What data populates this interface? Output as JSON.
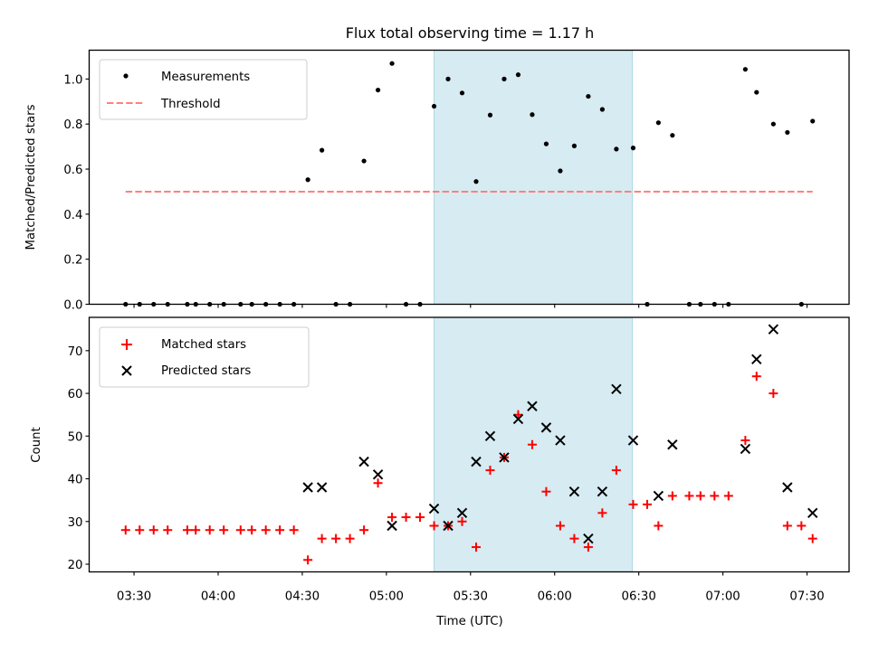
{
  "chart_data": [
    {
      "panel": "top",
      "type": "scatter",
      "title": "Flux total observing time = 1.17 h",
      "xlabel": "",
      "ylabel": "Matched/Predicted stars",
      "ylim": [
        0,
        1.128
      ],
      "yticks": [
        0.0,
        0.2,
        0.4,
        0.6,
        0.8,
        1.0
      ],
      "ytick_labels": [
        "0.0",
        "0.2",
        "0.4",
        "0.6",
        "0.8",
        "1.0"
      ],
      "legend": {
        "placement": "top-left",
        "entries": [
          "Measurements",
          "Threshold"
        ]
      },
      "series": [
        {
          "name": "Measurements",
          "marker": "dot",
          "color": "#000000",
          "x": [
            "03:27",
            "03:32",
            "03:37",
            "03:42",
            "03:49",
            "03:52",
            "03:57",
            "04:02",
            "04:08",
            "04:12",
            "04:17",
            "04:22",
            "04:27",
            "04:32",
            "04:37",
            "04:42",
            "04:47",
            "04:52",
            "04:57",
            "05:02",
            "05:07",
            "05:12",
            "05:17",
            "05:22",
            "05:27",
            "05:32",
            "05:37",
            "05:42",
            "05:47",
            "05:52",
            "05:57",
            "06:02",
            "06:07",
            "06:12",
            "06:17",
            "06:22",
            "06:28",
            "06:33",
            "06:37",
            "06:42",
            "06:48",
            "06:52",
            "06:57",
            "07:02",
            "07:08",
            "07:12",
            "07:18",
            "07:23",
            "07:28",
            "07:32"
          ],
          "y": [
            0,
            0,
            0,
            0,
            0,
            0,
            0,
            0,
            0,
            0,
            0,
            0,
            0,
            0.553,
            0.684,
            0,
            0,
            0.636,
            0.951,
            1.069,
            0,
            0,
            0.879,
            1.0,
            0.938,
            0.545,
            0.84,
            1.0,
            1.019,
            0.842,
            0.712,
            0.592,
            0.703,
            0.923,
            0.865,
            0.689,
            0.694,
            0,
            0.806,
            0.75,
            0,
            0,
            0,
            0,
            1.043,
            0.941,
            0.8,
            0.763,
            0,
            0.813
          ]
        },
        {
          "name": "Threshold",
          "line_style": "dashed",
          "color": "#ff7f7f",
          "x": [
            "03:27",
            "07:32"
          ],
          "y": [
            0.5,
            0.5
          ]
        }
      ],
      "shaded_span": {
        "x": [
          "05:17",
          "06:27.7"
        ],
        "color": "#add8e6"
      }
    },
    {
      "panel": "bottom",
      "type": "scatter",
      "title": "",
      "xlabel": "Time (UTC)",
      "ylabel": "Count",
      "ylim": [
        18.2,
        77.8
      ],
      "xlim": [
        "03:14",
        "07:45"
      ],
      "yticks": [
        20,
        30,
        40,
        50,
        60,
        70
      ],
      "ytick_labels": [
        "20",
        "30",
        "40",
        "50",
        "60",
        "70"
      ],
      "xticks": [
        "03:30",
        "04:00",
        "04:30",
        "05:00",
        "05:30",
        "06:00",
        "06:30",
        "07:00",
        "07:30"
      ],
      "xtick_labels": [
        "03:30",
        "04:00",
        "04:30",
        "05:00",
        "05:30",
        "06:00",
        "06:30",
        "07:00",
        "07:30"
      ],
      "legend": {
        "placement": "top-left",
        "entries": [
          "Matched stars",
          "Predicted stars"
        ]
      },
      "series": [
        {
          "name": "Matched stars",
          "marker": "plus",
          "color": "#ff0000",
          "x": [
            "03:27",
            "03:32",
            "03:37",
            "03:42",
            "03:49",
            "03:52",
            "03:57",
            "04:02",
            "04:08",
            "04:12",
            "04:17",
            "04:22",
            "04:27",
            "04:32",
            "04:37",
            "04:42",
            "04:47",
            "04:52",
            "04:57",
            "05:02",
            "05:07",
            "05:12",
            "05:17",
            "05:22",
            "05:27",
            "05:32",
            "05:37",
            "05:42",
            "05:47",
            "05:52",
            "05:57",
            "06:02",
            "06:07",
            "06:12",
            "06:17",
            "06:22",
            "06:28",
            "06:33",
            "06:37",
            "06:42",
            "06:48",
            "06:52",
            "06:57",
            "07:02",
            "07:08",
            "07:12",
            "07:18",
            "07:23",
            "07:28",
            "07:32"
          ],
          "y": [
            28,
            28,
            28,
            28,
            28,
            28,
            28,
            28,
            28,
            28,
            28,
            28,
            28,
            21,
            26,
            26,
            26,
            28,
            39,
            31,
            31,
            31,
            29,
            29,
            30,
            24,
            42,
            45,
            55,
            48,
            37,
            29,
            26,
            24,
            32,
            42,
            34,
            34,
            29,
            36,
            36,
            36,
            36,
            36,
            49,
            64,
            60,
            29,
            29,
            26
          ]
        },
        {
          "name": "Predicted stars",
          "marker": "x",
          "color": "#000000",
          "x": [
            "04:32",
            "04:37",
            "04:52",
            "04:57",
            "05:02",
            "05:17",
            "05:22",
            "05:27",
            "05:32",
            "05:37",
            "05:42",
            "05:47",
            "05:52",
            "05:57",
            "06:02",
            "06:07",
            "06:12",
            "06:17",
            "06:22",
            "06:28",
            "06:37",
            "06:42",
            "07:08",
            "07:12",
            "07:18",
            "07:23",
            "07:32"
          ],
          "y": [
            38,
            38,
            44,
            41,
            29,
            33,
            29,
            32,
            44,
            50,
            45,
            54,
            57,
            52,
            49,
            37,
            26,
            37,
            61,
            49,
            36,
            48,
            47,
            68,
            75,
            38,
            32
          ]
        }
      ],
      "shaded_span": {
        "x": [
          "05:17",
          "06:27.7"
        ],
        "color": "#add8e6"
      }
    }
  ]
}
